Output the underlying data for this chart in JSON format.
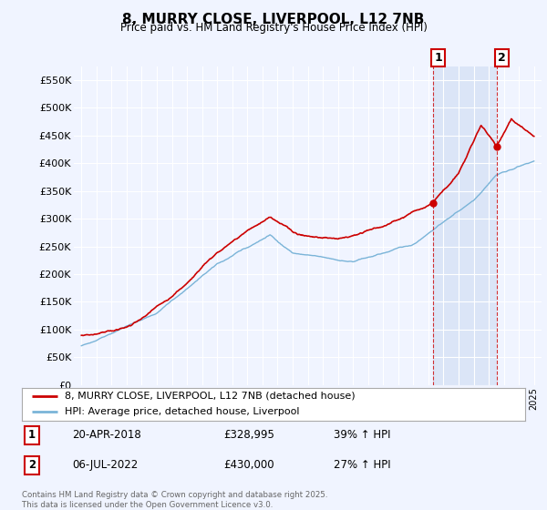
{
  "title": "8, MURRY CLOSE, LIVERPOOL, L12 7NB",
  "subtitle": "Price paid vs. HM Land Registry's House Price Index (HPI)",
  "ylim": [
    0,
    575000
  ],
  "yticks": [
    0,
    50000,
    100000,
    150000,
    200000,
    250000,
    300000,
    350000,
    400000,
    450000,
    500000,
    550000
  ],
  "ytick_labels": [
    "£0",
    "£50K",
    "£100K",
    "£150K",
    "£200K",
    "£250K",
    "£300K",
    "£350K",
    "£400K",
    "£450K",
    "£500K",
    "£550K"
  ],
  "hpi_color": "#7ab4d8",
  "price_color": "#cc0000",
  "vline_color": "#cc0000",
  "background_color": "#f0f4ff",
  "sale1_year": 2018.3,
  "sale2_year": 2022.52,
  "sale1_price": 328995,
  "sale2_price": 430000,
  "legend_label_price": "8, MURRY CLOSE, LIVERPOOL, L12 7NB (detached house)",
  "legend_label_hpi": "HPI: Average price, detached house, Liverpool",
  "footer_text": "Contains HM Land Registry data © Crown copyright and database right 2025.\nThis data is licensed under the Open Government Licence v3.0.",
  "table_row1": [
    "1",
    "20-APR-2018",
    "£328,995",
    "39% ↑ HPI"
  ],
  "table_row2": [
    "2",
    "06-JUL-2022",
    "£430,000",
    "27% ↑ HPI"
  ],
  "xmin": 1995,
  "xmax": 2025
}
